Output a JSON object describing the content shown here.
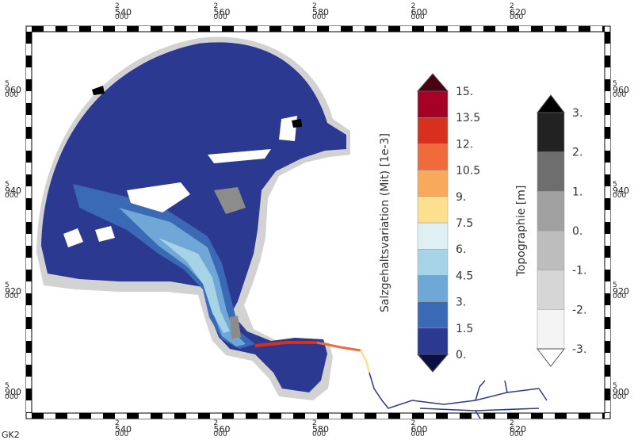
{
  "corner_label": "GK2",
  "x_labels": [
    [
      "2",
      "540",
      "000"
    ],
    [
      "2",
      "560",
      "000"
    ],
    [
      "2",
      "580",
      "000"
    ],
    [
      "2",
      "600",
      "000"
    ],
    [
      "2",
      "620",
      "000"
    ]
  ],
  "y_labels": [
    [
      "5",
      "960",
      "000"
    ],
    [
      "5",
      "940",
      "000"
    ],
    [
      "5",
      "920",
      "000"
    ],
    [
      "5",
      "900",
      "000"
    ]
  ],
  "colorbars": [
    {
      "title": "Salzgehaltsvariation  (Mit)  [1e-3]",
      "ticks": [
        "0.",
        "1.5",
        "3.",
        "4.5",
        "6.",
        "7.5",
        "9.",
        "10.5",
        "12.",
        "13.5",
        "15."
      ],
      "colors": [
        "#2b3990",
        "#3a6ab5",
        "#6fa8d6",
        "#a6d3e6",
        "#dff0f5",
        "#fde08f",
        "#f9a95b",
        "#f06b3c",
        "#d7301f",
        "#a50026"
      ],
      "under_color": "#0a1040",
      "over_color": "#4a0010"
    },
    {
      "title": "Topographie  [m]",
      "ticks": [
        "-3.",
        "-2.",
        "-1.",
        "0.",
        "1.",
        "2.",
        "3."
      ],
      "colors": [
        "#f4f4f4",
        "#d6d6d6",
        "#bdbdbd",
        "#a0a0a0",
        "#6e6e6e",
        "#222222"
      ],
      "under_color": "#ffffff",
      "over_color": "#000000"
    }
  ]
}
